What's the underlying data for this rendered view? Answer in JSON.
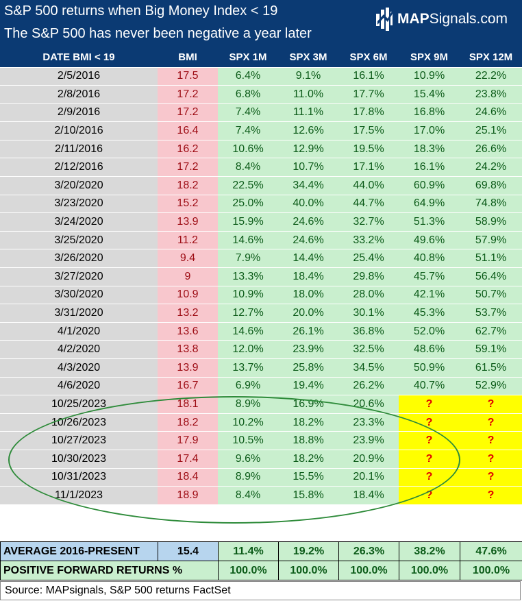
{
  "header": {
    "title_line1": "S&P 500 returns when Big Money Index < 19",
    "title_line2": "The S&P 500 has never been negative a year later",
    "logo_bold": "MAP",
    "logo_rest": "Signals.com"
  },
  "columns": [
    "DATE BMI < 19",
    "BMI",
    "SPX 1M",
    "SPX 3M",
    "SPX 6M",
    "SPX 9M",
    "SPX 12M"
  ],
  "rows": [
    [
      "2/5/2016",
      "17.5",
      "6.4%",
      "9.1%",
      "16.1%",
      "10.9%",
      "22.2%"
    ],
    [
      "2/8/2016",
      "17.2",
      "6.8%",
      "11.0%",
      "17.7%",
      "15.4%",
      "23.8%"
    ],
    [
      "2/9/2016",
      "17.2",
      "7.4%",
      "11.1%",
      "17.8%",
      "16.8%",
      "24.6%"
    ],
    [
      "2/10/2016",
      "16.4",
      "7.4%",
      "12.6%",
      "17.5%",
      "17.0%",
      "25.1%"
    ],
    [
      "2/11/2016",
      "16.2",
      "10.6%",
      "12.9%",
      "19.5%",
      "18.3%",
      "26.6%"
    ],
    [
      "2/12/2016",
      "17.2",
      "8.4%",
      "10.7%",
      "17.1%",
      "16.1%",
      "24.2%"
    ],
    [
      "3/20/2020",
      "18.2",
      "22.5%",
      "34.4%",
      "44.0%",
      "60.9%",
      "69.8%"
    ],
    [
      "3/23/2020",
      "15.2",
      "25.0%",
      "40.0%",
      "44.7%",
      "64.9%",
      "74.8%"
    ],
    [
      "3/24/2020",
      "13.9",
      "15.9%",
      "24.6%",
      "32.7%",
      "51.3%",
      "58.9%"
    ],
    [
      "3/25/2020",
      "11.2",
      "14.6%",
      "24.6%",
      "33.2%",
      "49.6%",
      "57.9%"
    ],
    [
      "3/26/2020",
      "9.4",
      "7.9%",
      "14.4%",
      "25.4%",
      "40.8%",
      "51.1%"
    ],
    [
      "3/27/2020",
      "9",
      "13.3%",
      "18.4%",
      "29.8%",
      "45.7%",
      "56.4%"
    ],
    [
      "3/30/2020",
      "10.9",
      "10.9%",
      "18.0%",
      "28.0%",
      "42.1%",
      "50.7%"
    ],
    [
      "3/31/2020",
      "13.2",
      "12.7%",
      "20.0%",
      "30.1%",
      "45.3%",
      "53.7%"
    ],
    [
      "4/1/2020",
      "13.6",
      "14.6%",
      "26.1%",
      "36.8%",
      "52.0%",
      "62.7%"
    ],
    [
      "4/2/2020",
      "13.8",
      "12.0%",
      "23.9%",
      "32.5%",
      "48.6%",
      "59.1%"
    ],
    [
      "4/3/2020",
      "13.9",
      "13.7%",
      "25.8%",
      "34.5%",
      "50.9%",
      "61.5%"
    ],
    [
      "4/6/2020",
      "16.7",
      "6.9%",
      "19.4%",
      "26.2%",
      "40.7%",
      "52.9%"
    ],
    [
      "10/25/2023",
      "18.1",
      "8.9%",
      "16.9%",
      "20.6%",
      "?",
      "?"
    ],
    [
      "10/26/2023",
      "18.2",
      "10.2%",
      "18.2%",
      "23.3%",
      "?",
      "?"
    ],
    [
      "10/27/2023",
      "17.9",
      "10.5%",
      "18.8%",
      "23.9%",
      "?",
      "?"
    ],
    [
      "10/30/2023",
      "17.4",
      "9.6%",
      "18.2%",
      "20.9%",
      "?",
      "?"
    ],
    [
      "10/31/2023",
      "18.4",
      "8.9%",
      "15.5%",
      "20.1%",
      "?",
      "?"
    ],
    [
      "11/1/2023",
      "18.9",
      "8.4%",
      "15.8%",
      "18.4%",
      "?",
      "?"
    ]
  ],
  "summary": {
    "average": {
      "label": "AVERAGE 2016-PRESENT",
      "bmi": "15.4",
      "values": [
        "11.4%",
        "19.2%",
        "26.3%",
        "38.2%",
        "47.6%"
      ]
    },
    "positive": {
      "label": "POSITIVE FORWARD RETURNS %",
      "values": [
        "100.0%",
        "100.0%",
        "100.0%",
        "100.0%",
        "100.0%"
      ]
    }
  },
  "source": "Source: MAPsignals, S&P 500 returns FactSet",
  "colors": {
    "header_bg": "#0b3a73",
    "date_bg": "#d9d9d9",
    "bmi_bg": "#f8c7cd",
    "bmi_text": "#9c0a12",
    "return_bg": "#c9efce",
    "return_text": "#0a5a17",
    "unknown_bg": "#ffff00",
    "unknown_text": "#e00000",
    "ellipse": "#2e8b3a"
  }
}
